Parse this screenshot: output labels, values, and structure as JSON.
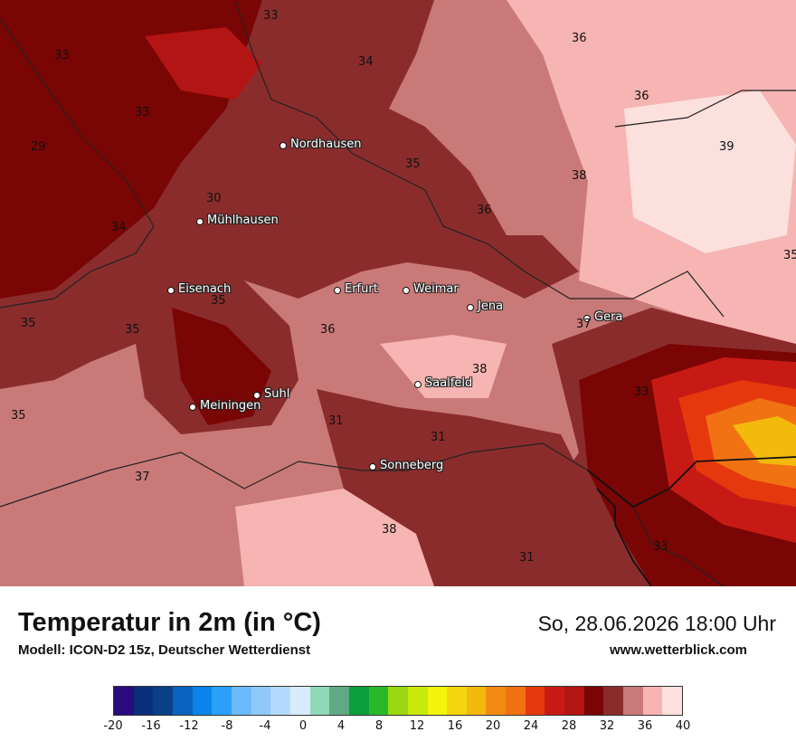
{
  "map": {
    "cities": [
      {
        "name": "Nordhausen",
        "pos": [
          313,
          161
        ]
      },
      {
        "name": "Mühlhausen",
        "pos": [
          221,
          245
        ]
      },
      {
        "name": "Eisenach",
        "pos": [
          189,
          321
        ]
      },
      {
        "name": "Erfurt",
        "pos": [
          373,
          321
        ]
      },
      {
        "name": "Weimar",
        "pos": [
          449,
          321
        ]
      },
      {
        "name": "Jena",
        "pos": [
          520,
          340
        ]
      },
      {
        "name": "Gera",
        "pos": [
          649,
          352
        ]
      },
      {
        "name": "Saalfeld",
        "pos": [
          462,
          425
        ]
      },
      {
        "name": "Suhl",
        "pos": [
          284,
          437
        ]
      },
      {
        "name": "Meiningen",
        "pos": [
          213,
          450
        ]
      },
      {
        "name": "Sonneberg",
        "pos": [
          412,
          516
        ]
      }
    ],
    "isolines": [
      {
        "v": "33",
        "pos": [
          299,
          18
        ]
      },
      {
        "v": "33",
        "pos": [
          68,
          62
        ]
      },
      {
        "v": "34",
        "pos": [
          404,
          69
        ]
      },
      {
        "v": "36",
        "pos": [
          640,
          43
        ]
      },
      {
        "v": "36",
        "pos": [
          709,
          107
        ]
      },
      {
        "v": "33",
        "pos": [
          157,
          125
        ]
      },
      {
        "v": "29",
        "pos": [
          42,
          163
        ]
      },
      {
        "v": "39",
        "pos": [
          803,
          163
        ]
      },
      {
        "v": "35",
        "pos": [
          456,
          182
        ]
      },
      {
        "v": "38",
        "pos": [
          640,
          195
        ]
      },
      {
        "v": "30",
        "pos": [
          236,
          220
        ]
      },
      {
        "v": "36",
        "pos": [
          535,
          233
        ]
      },
      {
        "v": "34",
        "pos": [
          131,
          252
        ]
      },
      {
        "v": "35",
        "pos": [
          874,
          283
        ]
      },
      {
        "v": "35",
        "pos": [
          241,
          333
        ]
      },
      {
        "v": "35",
        "pos": [
          31,
          358
        ]
      },
      {
        "v": "37",
        "pos": [
          645,
          359
        ]
      },
      {
        "v": "35",
        "pos": [
          146,
          365
        ]
      },
      {
        "v": "36",
        "pos": [
          362,
          365
        ]
      },
      {
        "v": "38",
        "pos": [
          530,
          409
        ]
      },
      {
        "v": "33",
        "pos": [
          709,
          434
        ]
      },
      {
        "v": "35",
        "pos": [
          20,
          460
        ]
      },
      {
        "v": "31",
        "pos": [
          371,
          466
        ]
      },
      {
        "v": "31",
        "pos": [
          484,
          484
        ]
      },
      {
        "v": "37",
        "pos": [
          157,
          528
        ]
      },
      {
        "v": "38",
        "pos": [
          430,
          586
        ]
      },
      {
        "v": "33",
        "pos": [
          730,
          605
        ]
      },
      {
        "v": "31",
        "pos": [
          582,
          617
        ]
      }
    ]
  },
  "footer": {
    "title": "Temperatur in 2m (in °C)",
    "subtitle": "Modell: ICON-D2 15z, Deutscher Wetterdienst",
    "datetime": "So, 28.06.2026 18:00 Uhr",
    "website": "www.wetterblick.com"
  },
  "legend": {
    "colors": [
      "#2a0a7d",
      "#0a2f7a",
      "#0b3f88",
      "#0a63be",
      "#0a83ea",
      "#2aa0f9",
      "#6cbafa",
      "#8ec9fa",
      "#b3dafc",
      "#d8ebfd",
      "#8fd8b8",
      "#5faa84",
      "#0c9e3a",
      "#2ab82a",
      "#9bd80f",
      "#c8ea0a",
      "#f2f50a",
      "#f3d60d",
      "#f3b90d",
      "#f28c10",
      "#f07212",
      "#e5390d",
      "#c81a14",
      "#b31414",
      "#7a0505",
      "#8b2c2c",
      "#c97a78",
      "#f6b4b2",
      "#fbe0de"
    ],
    "ticks": [
      "-20",
      "-16",
      "-12",
      "-8",
      "-4",
      "0",
      "4",
      "8",
      "12",
      "16",
      "20",
      "24",
      "28",
      "32",
      "36",
      "40"
    ],
    "min": -20,
    "max": 40
  }
}
